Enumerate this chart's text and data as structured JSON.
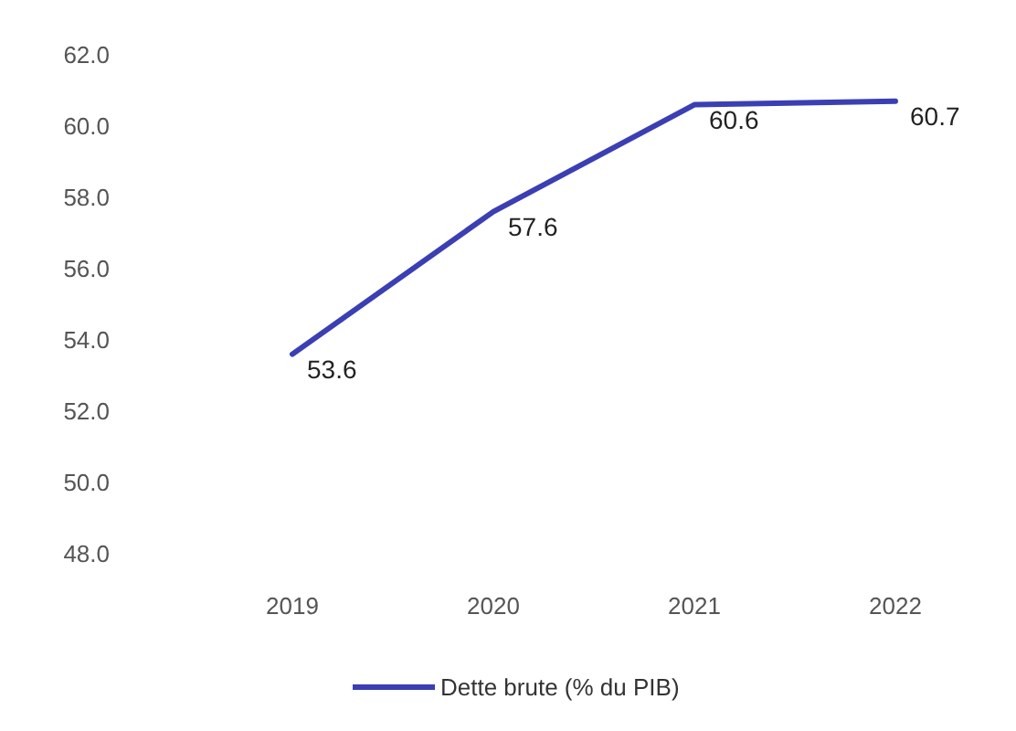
{
  "chart_data": {
    "type": "line",
    "categories": [
      "2019",
      "2020",
      "2021",
      "2022"
    ],
    "series": [
      {
        "name": "Dette brute (% du PIB)",
        "color": "#3b3fb3",
        "values": [
          53.6,
          57.6,
          60.6,
          60.7
        ]
      }
    ],
    "ylim": [
      48,
      62
    ],
    "yticks": [
      {
        "value": 48,
        "label": "48.0"
      },
      {
        "value": 50,
        "label": "50.0"
      },
      {
        "value": 52,
        "label": "52.0"
      },
      {
        "value": 54,
        "label": "54.0"
      },
      {
        "value": 56,
        "label": "56.0"
      },
      {
        "value": 58,
        "label": "58.0"
      },
      {
        "value": 60,
        "label": "60.0"
      },
      {
        "value": 62,
        "label": "62.0"
      }
    ],
    "data_labels": true,
    "legend": "bottom",
    "marker": "none",
    "line_style": "solid",
    "grid": false
  }
}
